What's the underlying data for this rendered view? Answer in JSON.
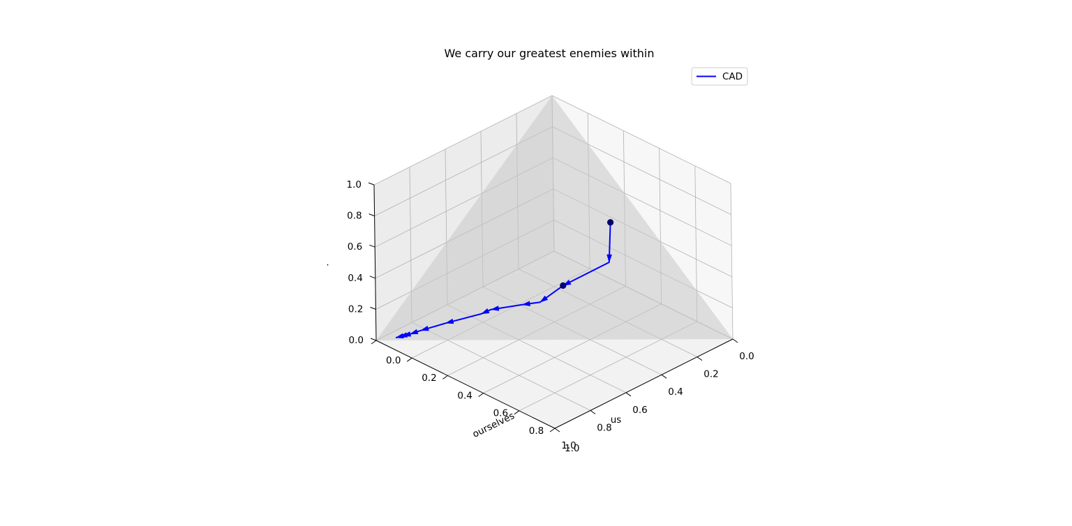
{
  "chart_data": {
    "type": "line",
    "projection": "3d",
    "title": "We carry our greatest enemies within",
    "xlabel": "us",
    "ylabel": "ourselves",
    "zlabel": ".",
    "xlim": [
      0,
      1
    ],
    "ylim": [
      0,
      1
    ],
    "zlim": [
      0,
      1
    ],
    "xticks": [
      "0.0",
      "0.2",
      "0.4",
      "0.6",
      "0.8",
      "1.0"
    ],
    "yticks": [
      "0.0",
      "0.2",
      "0.4",
      "0.6",
      "0.8",
      "1.0"
    ],
    "zticks": [
      "0.0",
      "0.2",
      "0.4",
      "0.6",
      "0.8",
      "1.0"
    ],
    "grid": true,
    "legend_position": "top-right",
    "simplex_plane": true,
    "series": [
      {
        "name": "CAD",
        "color": "#0000ff",
        "marker_color": "#00007a",
        "direction_arrows": true,
        "points": [
          {
            "x": 0.1,
            "y": 0.42,
            "z": 0.48
          },
          {
            "x": 0.12,
            "y": 0.43,
            "z": 0.24
          },
          {
            "x": 0.24,
            "y": 0.29,
            "z": 0.08
          },
          {
            "x": 0.35,
            "y": 0.27,
            "z": 0.025
          },
          {
            "x": 0.4,
            "y": 0.22,
            "z": 0.01
          },
          {
            "x": 0.51,
            "y": 0.155,
            "z": 0.005
          },
          {
            "x": 0.56,
            "y": 0.15,
            "z": 0.003
          },
          {
            "x": 0.71,
            "y": 0.1,
            "z": 0.001
          },
          {
            "x": 0.82,
            "y": 0.07,
            "z": 0.0
          },
          {
            "x": 0.87,
            "y": 0.06,
            "z": 0.0
          },
          {
            "x": 0.9,
            "y": 0.05,
            "z": 0.0
          },
          {
            "x": 0.915,
            "y": 0.045,
            "z": 0.0
          },
          {
            "x": 0.93,
            "y": 0.04,
            "z": 0.0
          }
        ],
        "marked_points": [
          0,
          2
        ]
      }
    ]
  }
}
